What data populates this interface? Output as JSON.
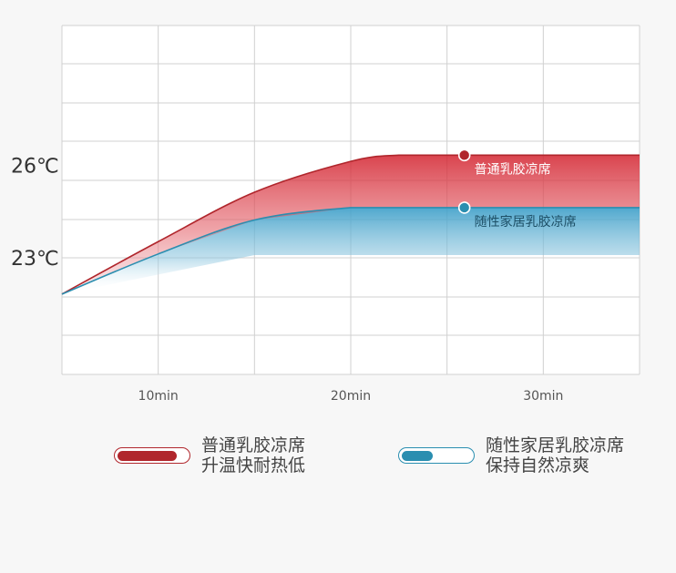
{
  "chart_data": {
    "type": "line",
    "title": "",
    "xlabel": "",
    "ylabel": "",
    "x_ticks": [
      {
        "value": 10,
        "label": "10min"
      },
      {
        "value": 20,
        "label": "20min"
      },
      {
        "value": 30,
        "label": "30min"
      }
    ],
    "xlim": [
      5,
      35
    ],
    "y_ticks": [
      {
        "value": 26,
        "label": "26℃"
      },
      {
        "value": 23,
        "label": "23℃"
      }
    ],
    "ylim": [
      19.2,
      30.5
    ],
    "grid": true,
    "series": [
      {
        "name": "普通乳胶凉席",
        "color": "#b0262c",
        "x": [
          5,
          10,
          15,
          20,
          22.5,
          25,
          30,
          35
        ],
        "y": [
          21.8,
          23.5,
          25.1,
          26.1,
          26.3,
          26.3,
          26.3,
          26.3
        ],
        "marker_x": 25.9,
        "marker_label": "普通乳胶凉席"
      },
      {
        "name": "随性家居乳胶凉席",
        "color": "#2a8eb0",
        "x": [
          5,
          10,
          15,
          20,
          22.5,
          25,
          30,
          35
        ],
        "y": [
          21.8,
          23.1,
          24.2,
          24.6,
          24.6,
          24.6,
          24.6,
          24.6
        ],
        "marker_x": 25.9,
        "marker_label": "随性家居乳胶凉席"
      }
    ]
  },
  "legend": [
    {
      "name": "普通乳胶凉席",
      "line1": "普通乳胶凉席",
      "line2": "升温快耐热低",
      "color": "#b0262c",
      "fill_fraction": 0.85
    },
    {
      "name": "随性家居乳胶凉席",
      "line1": "随性家居乳胶凉席",
      "line2": "保持自然凉爽",
      "color": "#2a8eb0",
      "fill_fraction": 0.45
    }
  ]
}
